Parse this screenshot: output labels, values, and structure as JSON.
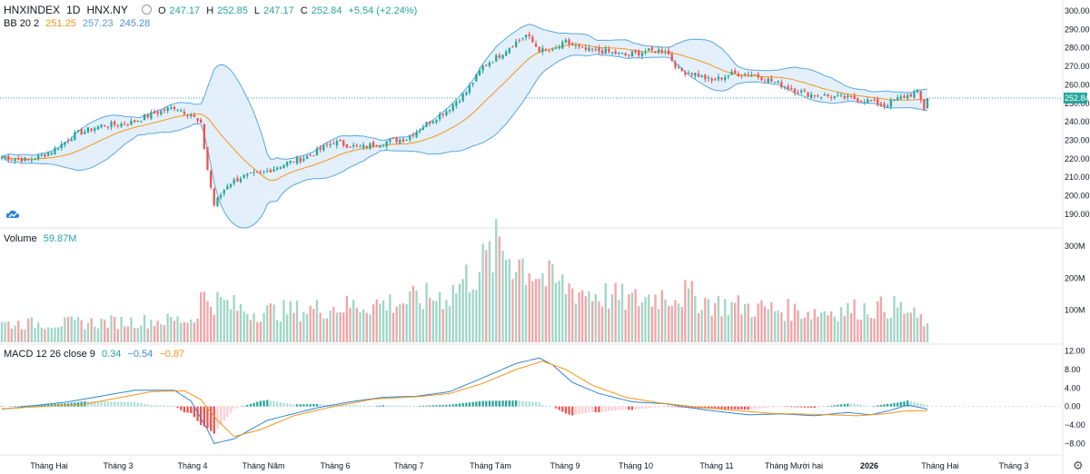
{
  "header": {
    "symbol": "HNXINDEX",
    "interval": "1D",
    "exchange": "HNX.NY",
    "open_label": "O",
    "open": "247.17",
    "high_label": "H",
    "high": "252.85",
    "low_label": "L",
    "low": "247.17",
    "close_label": "C",
    "close": "252.84",
    "change": "+5.54 (+2.24%)"
  },
  "bb_legend": {
    "name": "BB 20 2",
    "basis": "251.25",
    "upper": "257.23",
    "lower": "245.28"
  },
  "volume_legend": {
    "name": "Volume",
    "value": "59.87M"
  },
  "macd_legend": {
    "name": "MACD 12 26 close 9",
    "hist": "0.34",
    "macd": "−0.54",
    "signal": "−0.87"
  },
  "colors": {
    "up": "#26a69a",
    "down": "#ef5350",
    "vol_up": "#9fd6c6",
    "vol_down": "#f3a4a6",
    "bb_band": "#5aa7e0",
    "bb_fill": "#e3f0fb",
    "bb_basis": "#f7931a",
    "macd_line": "#2f86d6",
    "signal_line": "#f7931a"
  },
  "chart_data": {
    "type": "candlestick",
    "title": "HNXINDEX 1D HNX.NY",
    "last_price_label": "252.84",
    "price_axis": {
      "ticks": [
        "300.00",
        "290.00",
        "280.00",
        "270.00",
        "260.00",
        "250.00",
        "240.00",
        "230.00",
        "220.00",
        "210.00",
        "200.00",
        "190.00"
      ],
      "ylim": [
        184,
        302
      ]
    },
    "volume_axis": {
      "ticks": [
        "300M",
        "200M",
        "100M"
      ],
      "ylim": [
        0,
        340
      ]
    },
    "macd_axis": {
      "ticks": [
        "12.00",
        "8.00",
        "4.00",
        "0.00",
        "−4.00",
        "−8.00"
      ],
      "ylim": [
        -9.5,
        12.5
      ]
    },
    "x_labels": [
      "Tháng Hai",
      "Tháng 3",
      "Tháng 4",
      "Tháng Năm",
      "Tháng 6",
      "Tháng 7",
      "Tháng Tám",
      "Tháng 9",
      "Tháng 10",
      "Tháng 11",
      "Tháng Mười hai",
      "2026",
      "Tháng Hai",
      "Tháng 3"
    ],
    "close_anchors": [
      [
        0,
        221
      ],
      [
        8,
        219
      ],
      [
        15,
        224
      ],
      [
        22,
        233
      ],
      [
        30,
        238
      ],
      [
        38,
        239
      ],
      [
        45,
        244
      ],
      [
        52,
        248
      ],
      [
        57,
        244
      ],
      [
        60,
        238
      ],
      [
        62,
        214
      ],
      [
        64,
        195
      ],
      [
        68,
        206
      ],
      [
        72,
        210
      ],
      [
        78,
        212
      ],
      [
        85,
        217
      ],
      [
        92,
        221
      ],
      [
        100,
        229
      ],
      [
        108,
        226
      ],
      [
        115,
        229
      ],
      [
        122,
        231
      ],
      [
        128,
        239
      ],
      [
        134,
        246
      ],
      [
        140,
        256
      ],
      [
        145,
        270
      ],
      [
        150,
        276
      ],
      [
        154,
        282
      ],
      [
        158,
        287
      ],
      [
        162,
        279
      ],
      [
        166,
        278
      ],
      [
        170,
        283
      ],
      [
        175,
        279
      ],
      [
        182,
        278
      ],
      [
        188,
        276
      ],
      [
        194,
        278
      ],
      [
        200,
        279
      ],
      [
        204,
        268
      ],
      [
        209,
        266
      ],
      [
        214,
        262
      ],
      [
        220,
        266
      ],
      [
        226,
        266
      ],
      [
        232,
        262
      ],
      [
        238,
        258
      ],
      [
        243,
        255
      ],
      [
        248,
        254
      ],
      [
        254,
        253
      ],
      [
        260,
        252
      ],
      [
        266,
        249
      ],
      [
        271,
        253
      ],
      [
        276,
        256
      ],
      [
        278,
        247
      ],
      [
        279,
        252.84
      ]
    ],
    "volume_anchors": [
      [
        0,
        58
      ],
      [
        20,
        60
      ],
      [
        40,
        65
      ],
      [
        58,
        72
      ],
      [
        60,
        140
      ],
      [
        66,
        125
      ],
      [
        75,
        95
      ],
      [
        90,
        100
      ],
      [
        100,
        110
      ],
      [
        120,
        125
      ],
      [
        135,
        150
      ],
      [
        140,
        200
      ],
      [
        145,
        240
      ],
      [
        150,
        300
      ],
      [
        155,
        260
      ],
      [
        160,
        230
      ],
      [
        165,
        190
      ],
      [
        175,
        160
      ],
      [
        190,
        130
      ],
      [
        200,
        150
      ],
      [
        206,
        150
      ],
      [
        215,
        120
      ],
      [
        230,
        105
      ],
      [
        245,
        95
      ],
      [
        260,
        105
      ],
      [
        270,
        110
      ],
      [
        279,
        60
      ]
    ],
    "macd_anchors": [
      [
        0,
        -0.6
      ],
      [
        20,
        1.0
      ],
      [
        40,
        3.5
      ],
      [
        52,
        3.5
      ],
      [
        57,
        1.2
      ],
      [
        62,
        -5.0
      ],
      [
        64,
        -8.0
      ],
      [
        70,
        -7.0
      ],
      [
        80,
        -3.0
      ],
      [
        95,
        -0.3
      ],
      [
        105,
        1.0
      ],
      [
        115,
        2.0
      ],
      [
        125,
        2.2
      ],
      [
        135,
        3.2
      ],
      [
        145,
        6.2
      ],
      [
        155,
        9.3
      ],
      [
        162,
        10.5
      ],
      [
        166,
        9.0
      ],
      [
        172,
        5.2
      ],
      [
        180,
        2.8
      ],
      [
        190,
        1.0
      ],
      [
        200,
        0.6
      ],
      [
        205,
        0.0
      ],
      [
        215,
        -1.0
      ],
      [
        225,
        -1.8
      ],
      [
        235,
        -1.6
      ],
      [
        245,
        -2.0
      ],
      [
        255,
        -1.3
      ],
      [
        262,
        -1.8
      ],
      [
        268,
        -0.8
      ],
      [
        273,
        0.3
      ],
      [
        279,
        -0.54
      ]
    ],
    "signal_anchors": [
      [
        0,
        -0.5
      ],
      [
        25,
        0.5
      ],
      [
        45,
        3.2
      ],
      [
        55,
        3.4
      ],
      [
        60,
        1.5
      ],
      [
        65,
        -3.0
      ],
      [
        70,
        -6.5
      ],
      [
        78,
        -5.0
      ],
      [
        88,
        -2.0
      ],
      [
        100,
        0.0
      ],
      [
        112,
        1.6
      ],
      [
        125,
        2.1
      ],
      [
        135,
        2.8
      ],
      [
        145,
        5.0
      ],
      [
        155,
        8.0
      ],
      [
        163,
        9.8
      ],
      [
        170,
        8.0
      ],
      [
        178,
        4.6
      ],
      [
        188,
        2.0
      ],
      [
        198,
        0.8
      ],
      [
        208,
        0.0
      ],
      [
        220,
        -0.8
      ],
      [
        232,
        -1.5
      ],
      [
        245,
        -1.7
      ],
      [
        258,
        -2.0
      ],
      [
        266,
        -1.6
      ],
      [
        272,
        -1.0
      ],
      [
        279,
        -0.87
      ]
    ]
  }
}
